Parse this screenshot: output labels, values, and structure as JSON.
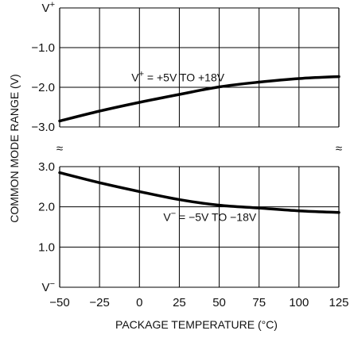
{
  "chart_data": {
    "type": "line",
    "xlabel": "PACKAGE TEMPERATURE (°C)",
    "ylabel": "COMMON MODE RANGE (V)",
    "xlim": [
      -50,
      125
    ],
    "x_ticks": [
      {
        "value": -50,
        "label": "−50"
      },
      {
        "value": -25,
        "label": "−25"
      },
      {
        "value": 0,
        "label": "0"
      },
      {
        "value": 25,
        "label": "25"
      },
      {
        "value": 50,
        "label": "50"
      },
      {
        "value": 75,
        "label": "75"
      },
      {
        "value": 100,
        "label": "100"
      },
      {
        "value": 125,
        "label": "125"
      }
    ],
    "axis_break": "≈",
    "upper_panel": {
      "ylim": [
        -3.0,
        0
      ],
      "y_ticks": [
        {
          "value": 0,
          "label": "V",
          "sup": "+"
        },
        {
          "value": -1.0,
          "label": "−1.0"
        },
        {
          "value": -2.0,
          "label": "−2.0"
        },
        {
          "value": -3.0,
          "label": "−3.0"
        }
      ],
      "series": [
        {
          "x": [
            -50,
            -25,
            0,
            25,
            50,
            75,
            100,
            125
          ],
          "y": [
            -2.85,
            -2.6,
            -2.38,
            -2.18,
            -1.99,
            -1.87,
            -1.78,
            -1.73
          ]
        }
      ],
      "annotation": {
        "pre": "V",
        "sup": "+",
        "post": " = +5V TO +18V",
        "x": -5,
        "y": -1.75
      }
    },
    "lower_panel": {
      "ylim": [
        0,
        3.0
      ],
      "y_ticks": [
        {
          "value": 3.0,
          "label": "3.0"
        },
        {
          "value": 2.0,
          "label": "2.0"
        },
        {
          "value": 1.0,
          "label": "1.0"
        },
        {
          "value": 0,
          "label": "V",
          "sup": "−"
        }
      ],
      "series": [
        {
          "x": [
            -50,
            -25,
            0,
            25,
            50,
            75,
            100,
            125
          ],
          "y": [
            2.85,
            2.6,
            2.38,
            2.18,
            2.04,
            1.97,
            1.9,
            1.86
          ]
        }
      ],
      "annotation": {
        "pre": "V",
        "sup": "−",
        "post": " = −5V TO −18V",
        "x": 15,
        "y": 1.75
      }
    },
    "grid": true,
    "line_color": "#000000"
  }
}
